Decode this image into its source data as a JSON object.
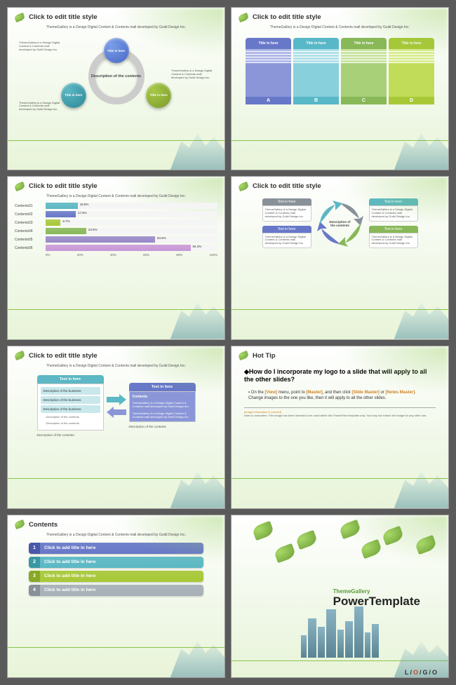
{
  "common": {
    "title": "Click to edit title style",
    "subtitle": "ThemeGallery is a Design Digital Content & Contents mall developed by Guild Design Inc.",
    "note_text": "ThemeGallery is a Design Digital Content & Contents mall developed by Guild Design Inc.",
    "title_in_here": "Title in here",
    "text_in_here": "Text in here",
    "desc_contents": "Description of the contents"
  },
  "slide1": {
    "ring_label": "Description of\nthe contents"
  },
  "slide2": {
    "columns": [
      {
        "letter": "A",
        "head_bg": "#6878c8",
        "body_bg": "#8a96d8",
        "stripe": "#b0b8e8"
      },
      {
        "letter": "B",
        "head_bg": "#58b8c8",
        "body_bg": "#88d0dc",
        "stripe": "#b0e0e8"
      },
      {
        "letter": "C",
        "head_bg": "#88b858",
        "body_bg": "#a8d078",
        "stripe": "#c8e4a0"
      },
      {
        "letter": "D",
        "head_bg": "#a8c838",
        "body_bg": "#c0dc58",
        "stripe": "#d8ec90"
      }
    ]
  },
  "slide3": {
    "bars": [
      {
        "label": "Contents01",
        "value": 18.6,
        "color": "#5bb8c4"
      },
      {
        "label": "Contents02",
        "value": 17.5,
        "color": "#6878c8"
      },
      {
        "label": "Contents03",
        "value": 8.7,
        "color": "#a8c838"
      },
      {
        "label": "Contents04",
        "value": 23.6,
        "color": "#88b858"
      },
      {
        "label": "Contents05",
        "value": 63.6,
        "color": "#9888c8"
      },
      {
        "label": "Contents06",
        "value": 84.3,
        "color": "#c898d8"
      }
    ],
    "axis": [
      "0%",
      "20%",
      "40%",
      "60%",
      "80%",
      "100%"
    ]
  },
  "slide4": {
    "box_head_colors": [
      "#889098",
      "#6878c8",
      "#5bb8c4",
      "#88b858"
    ],
    "body_text": "ThemeGallery is a Design Digital Content & Contents mall developed by Guild Design Inc."
  },
  "slide5": {
    "panel1": {
      "head_bg": "#5bb8c4",
      "items": [
        "Description of the business",
        "Description of the business",
        "Description of the business"
      ],
      "subs": [
        "Description of the contents",
        "Description of the contents"
      ]
    },
    "panel2": {
      "head_bg": "#6878c8",
      "title": "Contents",
      "body_items": [
        "ThemeGallery is a Design Digital Content & Contents mall developed by Guild Design Inc.",
        "ThemeGallery is a Design Digital Content & Contents mall developed by Guild Design Inc."
      ]
    },
    "arrow_colors": [
      "#5bb8c4",
      "#8a96d8"
    ]
  },
  "slide6": {
    "title": "Hot Tip",
    "question": "How do I incorporate my logo to a slide that will apply to all the other slides?",
    "answer_pre": "On the ",
    "hl1": "[View]",
    "answer_mid1": " menu, point to ",
    "hl2": "[Master]",
    "answer_mid2": ", and then click ",
    "hl3": "[Slide Master]",
    "answer_mid3": " or ",
    "hl4": "[Notes Master]",
    "answer_post": ". Change images to the one you like, then it will apply to all the other slides.",
    "note_title": "[Image information in product]",
    "note_body": "Note to customers: This image has been licensed to be used within this PowerPoint template only. You may not extract the image for any other use."
  },
  "slide7": {
    "title": "Contents",
    "items": [
      {
        "num": "1",
        "text": "Click to add title in here",
        "bg": "#6878c8",
        "num_bg": "#4a58a8"
      },
      {
        "num": "2",
        "text": "Click to add title in here",
        "bg": "#5bb8c4",
        "num_bg": "#3a98a4"
      },
      {
        "num": "3",
        "text": "Click to add title in here",
        "bg": "#a8c838",
        "num_bg": "#88a828"
      },
      {
        "num": "4",
        "text": "Click to add title in here",
        "bg": "#a8b0b8",
        "num_bg": "#889098"
      }
    ]
  },
  "slide8": {
    "subtitle": "ThemeGallery",
    "title": "PowerTemplate",
    "logo_l": "L/",
    "logo_o": "O",
    "logo_go": "/G/O"
  }
}
